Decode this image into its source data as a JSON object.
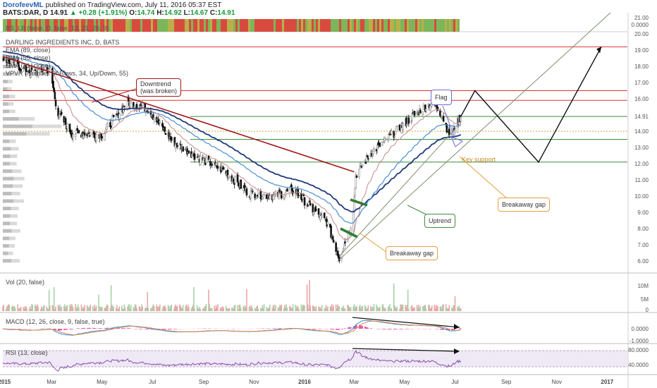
{
  "header": {
    "author": "DorofeevML",
    "published": "published on TradingView.com, July 11, 2016 05:37 EST",
    "symbol": "BATS:DAR, D",
    "last": "14.91",
    "change": "+0.28 (+1.91%)",
    "o_label": "O:",
    "o_value": "14.74",
    "h_label": "H:",
    "h_value": "14.92",
    "l_label": "L:",
    "l_value": "14.67",
    "c_label": "C:",
    "c_value": "14.91"
  },
  "indicators": {
    "bslb": "BS_LB (false, D, false, 13, 21, 26, 9)",
    "name": "DARLING INGREDIENTS INC, D, BATS",
    "ema89": "EMA (89, close)",
    "ema55": "EMA (55, close)",
    "ema21": "EMA (21, close)",
    "vpvr": "VPVR (Number Of Rows, 34, Up/Down, 55)"
  },
  "annotations": {
    "downtrend_1": "Downtrend",
    "downtrend_2": "(was broken)",
    "flag": "Flag",
    "key_support": "Key support",
    "breakaway_1": "Breakaway gap",
    "breakaway_2": "Breakaway gap",
    "uptrend": "Uptrend"
  },
  "panels": {
    "vol": "Vol (20, false)",
    "macd": "MACD (12, 26, close, 9, false, true)",
    "rsi": "RSI (13, close)"
  },
  "colors": {
    "up": "#8a8a8a",
    "down": "#111111",
    "ema89": "#1f3a78",
    "ema55": "#4a8fd0",
    "ema21": "#c98787",
    "red_level": "#dd3333",
    "green_level": "#3f8a3f",
    "downtrend": "#a01818",
    "macd": "#3c8fd6",
    "signal": "#e0884a",
    "macd_hist": "#e05aa8",
    "rsi": "#8a4fae",
    "bar_red": "#d94a3e",
    "bar_green": "#7db65a",
    "bar_olive": "#b9b04a"
  },
  "chart_data": [
    {
      "type": "candlestick",
      "title": "DARLING INGREDIENTS INC, D, BATS",
      "x_ticks": [
        "2015",
        "Mar",
        "May",
        "Jul",
        "Sep",
        "Nov",
        "2016",
        "Mar",
        "May",
        "Jul",
        "Sep",
        "Nov",
        "2017"
      ],
      "y_ticks": [
        6.0,
        7.0,
        8.0,
        9.0,
        10.0,
        11.0,
        12.0,
        13.0,
        14.0,
        14.91,
        16.0,
        17.0,
        18.0,
        19.0,
        20.0,
        21.0,
        0.0
      ],
      "ylim": [
        5.4,
        21.3
      ],
      "price_anchors": [
        {
          "t": "2015-01-01",
          "v": 18.5
        },
        {
          "t": "2015-02-05",
          "v": 17.6
        },
        {
          "t": "2015-02-27",
          "v": 17.8
        },
        {
          "t": "2015-03-08",
          "v": 15.2
        },
        {
          "t": "2015-03-25",
          "v": 13.9
        },
        {
          "t": "2015-05-01",
          "v": 13.8
        },
        {
          "t": "2015-06-01",
          "v": 15.8
        },
        {
          "t": "2015-06-25",
          "v": 15.4
        },
        {
          "t": "2015-07-25",
          "v": 13.4
        },
        {
          "t": "2015-08-25",
          "v": 12.4
        },
        {
          "t": "2015-09-25",
          "v": 11.6
        },
        {
          "t": "2015-10-25",
          "v": 10.2
        },
        {
          "t": "2015-11-25",
          "v": 10.0
        },
        {
          "t": "2015-12-20",
          "v": 10.4
        },
        {
          "t": "2016-01-10",
          "v": 9.2
        },
        {
          "t": "2016-01-28",
          "v": 8.4
        },
        {
          "t": "2016-02-12",
          "v": 6.2
        },
        {
          "t": "2016-02-28",
          "v": 8.5
        },
        {
          "t": "2016-03-03",
          "v": 11.3
        },
        {
          "t": "2016-03-20",
          "v": 12.6
        },
        {
          "t": "2016-04-25",
          "v": 14.2
        },
        {
          "t": "2016-05-20",
          "v": 15.3
        },
        {
          "t": "2016-06-05",
          "v": 15.8
        },
        {
          "t": "2016-06-15",
          "v": 15.0
        },
        {
          "t": "2016-06-25",
          "v": 13.7
        },
        {
          "t": "2016-07-08",
          "v": 14.91
        }
      ],
      "levels_red": [
        19.2,
        16.5,
        15.9
      ],
      "levels_green": [
        14.91,
        13.5,
        12.1
      ],
      "level_dotted": 14.0,
      "projection": [
        {
          "t": "2016-07-08",
          "v": 14.91
        },
        {
          "t": "2016-07-25",
          "v": 16.5
        },
        {
          "t": "2016-10-10",
          "v": 12.1
        },
        {
          "t": "2016-12-25",
          "v": 19.2
        }
      ],
      "downtrend_line": [
        {
          "t": "2015-01-01",
          "v": 18.6
        },
        {
          "t": "2016-03-01",
          "v": 11.5
        }
      ],
      "uptrend_channel": [
        [
          {
            "t": "2016-02-10",
            "v": 6.0
          },
          {
            "t": "2017-01-05",
            "v": 21.3
          }
        ],
        [
          {
            "t": "2016-02-12",
            "v": 6.3
          },
          {
            "t": "2016-07-02",
            "v": 14.2
          }
        ]
      ]
    },
    {
      "type": "bar",
      "title": "Vol (20, false)",
      "y_ticks": [
        "10M",
        "5M",
        "0"
      ]
    },
    {
      "type": "line",
      "title": "MACD (12, 26, close, 9, false, true)",
      "y_ticks": [
        0.0,
        -1.0
      ]
    },
    {
      "type": "line",
      "title": "RSI (13, close)",
      "y_ticks": [
        80.0,
        40.0
      ]
    }
  ]
}
